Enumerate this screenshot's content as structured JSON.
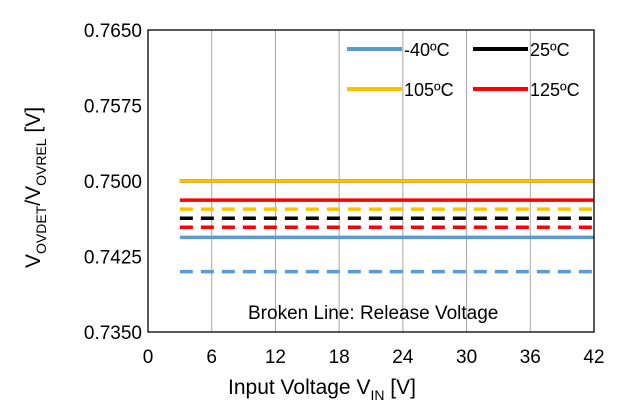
{
  "chart_data": {
    "type": "line",
    "x": [
      3,
      42
    ],
    "xlim": [
      0,
      42
    ],
    "ylim": [
      0.735,
      0.765
    ],
    "x_ticks": [
      "0",
      "6",
      "12",
      "18",
      "24",
      "30",
      "36",
      "42"
    ],
    "y_ticks": [
      "0.7350",
      "0.7425",
      "0.7500",
      "0.7575",
      "0.7650"
    ],
    "grid": "vertical",
    "legend_position": "top-right",
    "xlabel": {
      "main": "Input Voltage V",
      "sub": "IN",
      "unit": " [V]"
    },
    "ylabel": {
      "v1": "V",
      "sub1": "OVDET",
      "slash": "/V",
      "sub2": "OVREL",
      "unit": " [V]"
    },
    "annotation": "Broken Line: Release Voltage",
    "series": [
      {
        "name": "-40ºC",
        "color": "#5B9BD5",
        "detect": [
          0.7444,
          0.7444
        ],
        "release": [
          0.741,
          0.741
        ]
      },
      {
        "name": "25ºC",
        "color": "#000000",
        "detect": [
          0.75,
          0.75
        ],
        "release": [
          0.7463,
          0.7463
        ]
      },
      {
        "name": "105ºC",
        "color": "#FFC000",
        "detect": [
          0.75,
          0.75
        ],
        "release": [
          0.7472,
          0.7472
        ]
      },
      {
        "name": "125ºC",
        "color": "#FF0000",
        "detect": [
          0.7481,
          0.7481
        ],
        "release": [
          0.7454,
          0.7454
        ]
      }
    ]
  }
}
